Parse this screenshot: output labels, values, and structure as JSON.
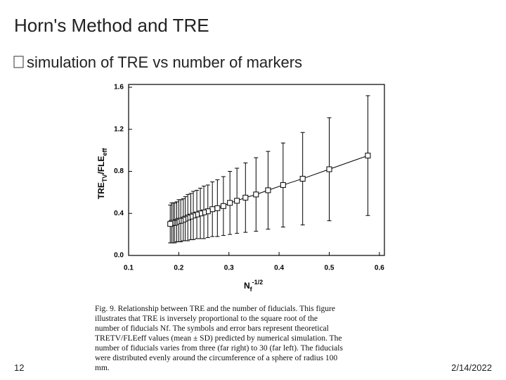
{
  "title": "Horn's Method and TRE",
  "bullet": "simulation of TRE vs number of markers",
  "page_number": "12",
  "date": "2/14/2022",
  "caption": [
    "Fig. 9.    Relationship between TRE and the number of fiducials. This figure",
    "illustrates that TRE is inversely proportional to the square root of the",
    "number of fiducials Nf. The symbols and error bars represent theoretical",
    "TRETV/FLEeff values (mean ± SD) predicted by numerical simulation. The",
    "number of fiducials varies from three (far right) to 30 (far left). The fiducials",
    "were distributed evenly around the circumference of a sphere of radius 100",
    "mm."
  ],
  "chart_data": {
    "type": "errorbar",
    "xlabel_parts": [
      "N",
      "f",
      "-1/2"
    ],
    "ylabel_parts": [
      "TRE",
      "TV",
      "/FLE",
      "eff"
    ],
    "x": [
      0.577,
      0.5,
      0.447,
      0.408,
      0.378,
      0.354,
      0.333,
      0.316,
      0.302,
      0.289,
      0.277,
      0.267,
      0.258,
      0.25,
      0.243,
      0.236,
      0.229,
      0.224,
      0.218,
      0.213,
      0.209,
      0.204,
      0.2,
      0.196,
      0.192,
      0.189,
      0.186,
      0.183
    ],
    "values": [
      0.95,
      0.82,
      0.73,
      0.67,
      0.62,
      0.58,
      0.55,
      0.52,
      0.5,
      0.47,
      0.45,
      0.44,
      0.42,
      0.41,
      0.4,
      0.39,
      0.38,
      0.37,
      0.36,
      0.35,
      0.34,
      0.33,
      0.33,
      0.32,
      0.31,
      0.31,
      0.31,
      0.3
    ],
    "errors": [
      0.57,
      0.49,
      0.44,
      0.4,
      0.37,
      0.35,
      0.33,
      0.31,
      0.3,
      0.28,
      0.27,
      0.26,
      0.25,
      0.25,
      0.24,
      0.23,
      0.23,
      0.22,
      0.22,
      0.21,
      0.2,
      0.2,
      0.2,
      0.19,
      0.19,
      0.19,
      0.19,
      0.18
    ],
    "color": "#000000",
    "xlim": [
      0.1,
      0.61
    ],
    "ylim": [
      0,
      1.6
    ],
    "xticks": [
      0.1,
      0.2,
      0.3,
      0.4,
      0.5,
      0.6
    ],
    "yticks": [
      {
        "value": 0,
        "label": "0.0"
      },
      0.4,
      0.8,
      1.2,
      1.6
    ]
  }
}
